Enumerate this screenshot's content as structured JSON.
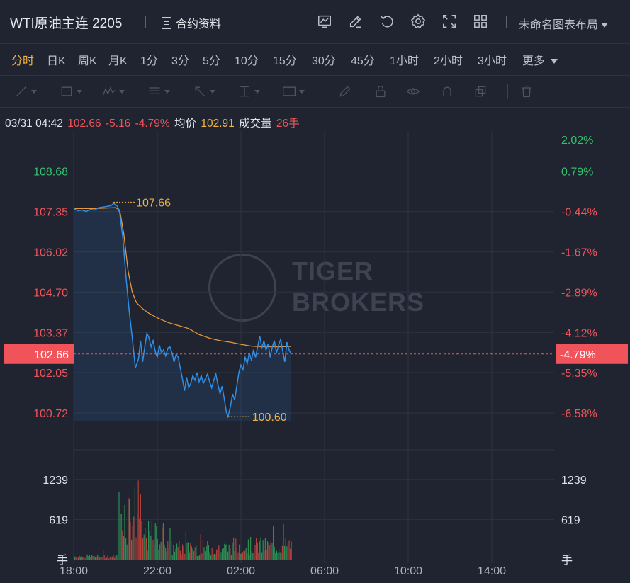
{
  "header": {
    "symbol": "WTI原油主连 2205",
    "contract_label": "合约资料",
    "layout_label": "未命名图表布局",
    "icons": [
      "indicator-icon",
      "draw-icon",
      "undo-icon",
      "settings-icon",
      "fullscreen-icon",
      "grid-layout-icon"
    ]
  },
  "periods": {
    "items": [
      "分时",
      "日K",
      "周K",
      "月K",
      "1分",
      "3分",
      "5分",
      "10分",
      "15分",
      "30分",
      "45分",
      "1小时",
      "2小时",
      "3小时",
      "更多"
    ],
    "active": "分时"
  },
  "drawing_tools": [
    "line-tool-icon",
    "rect-tool-icon",
    "pattern-tool-icon",
    "fib-tool-icon",
    "arrow-tool-icon",
    "measure-tool-icon",
    "text-tool-icon",
    "pen-icon",
    "lock-icon",
    "eye-icon",
    "magnet-icon",
    "layers-icon",
    "trash-icon"
  ],
  "info": {
    "datetime": "03/31 04:42",
    "price": "102.66",
    "change": "-5.16",
    "change_pct": "-4.79%",
    "avg_label": "均价",
    "avg_value": "102.91",
    "volume_label": "成交量",
    "volume_value": "26手"
  },
  "watermark": {
    "line1": "TIGER",
    "line2": "BROKERS"
  },
  "colors": {
    "bg": "#1f2430",
    "up": "#33c26b",
    "down": "#f0545a",
    "accent": "#f3b43a",
    "line": "#2f8fe6",
    "avg": "#e8973a"
  },
  "chart_data": {
    "type": "line",
    "x_ticks": [
      "18:00",
      "22:00",
      "02:00",
      "06:00",
      "10:00",
      "14:00"
    ],
    "price_ticks": [
      {
        "value": 108.68,
        "label": "108.68",
        "pct": "0.79%"
      },
      {
        "value": 107.35,
        "label": "107.35",
        "pct": "-0.44%"
      },
      {
        "value": 106.02,
        "label": "106.02",
        "pct": "-1.67%"
      },
      {
        "value": 104.7,
        "label": "104.70",
        "pct": "-2.89%"
      },
      {
        "value": 103.37,
        "label": "103.37",
        "pct": "-4.12%"
      },
      {
        "value": 102.05,
        "label": "102.05",
        "pct": "-5.35%"
      },
      {
        "value": 100.72,
        "label": "100.72",
        "pct": "-6.58%"
      }
    ],
    "top_pct": "2.02%",
    "current": {
      "price": 102.66,
      "label": "102.66",
      "pct": "-4.79%"
    },
    "high": {
      "value": 107.66,
      "label": "107.66"
    },
    "low": {
      "value": 100.6,
      "label": "100.60"
    },
    "ylim": [
      100.02,
      110.0
    ],
    "volume_ticks": [
      {
        "value": 1239,
        "label": "1239"
      },
      {
        "value": 619,
        "label": "619"
      }
    ],
    "volume_unit": "手",
    "price_series_hours": [
      [
        0.0,
        107.45
      ],
      [
        0.2,
        107.38
      ],
      [
        0.4,
        107.4
      ],
      [
        0.6,
        107.35
      ],
      [
        0.8,
        107.42
      ],
      [
        1.0,
        107.4
      ],
      [
        1.2,
        107.48
      ],
      [
        1.4,
        107.5
      ],
      [
        1.6,
        107.52
      ],
      [
        1.8,
        107.55
      ],
      [
        1.9,
        107.62
      ],
      [
        2.0,
        107.58
      ],
      [
        2.1,
        107.52
      ],
      [
        2.2,
        107.3
      ],
      [
        2.35,
        106.5
      ],
      [
        2.5,
        105.2
      ],
      [
        2.65,
        104.1
      ],
      [
        2.8,
        103.2
      ],
      [
        2.95,
        102.2
      ],
      [
        3.1,
        102.5
      ],
      [
        3.2,
        103.1
      ],
      [
        3.3,
        102.4
      ],
      [
        3.4,
        102.9
      ],
      [
        3.5,
        103.35
      ],
      [
        3.6,
        103.2
      ],
      [
        3.7,
        102.9
      ],
      [
        3.8,
        103.1
      ],
      [
        3.9,
        102.75
      ],
      [
        4.0,
        102.55
      ],
      [
        4.1,
        102.95
      ],
      [
        4.2,
        102.7
      ],
      [
        4.3,
        102.8
      ],
      [
        4.4,
        102.6
      ],
      [
        4.5,
        102.85
      ],
      [
        4.6,
        102.9
      ],
      [
        4.7,
        102.7
      ],
      [
        4.8,
        102.4
      ],
      [
        4.9,
        102.65
      ],
      [
        5.0,
        102.55
      ],
      [
        5.1,
        102.2
      ],
      [
        5.2,
        101.85
      ],
      [
        5.3,
        101.45
      ],
      [
        5.4,
        101.9
      ],
      [
        5.5,
        101.55
      ],
      [
        5.6,
        101.7
      ],
      [
        5.7,
        101.95
      ],
      [
        5.8,
        101.8
      ],
      [
        5.9,
        102.05
      ],
      [
        6.0,
        101.75
      ],
      [
        6.1,
        101.95
      ],
      [
        6.2,
        101.7
      ],
      [
        6.3,
        101.85
      ],
      [
        6.4,
        102.0
      ],
      [
        6.5,
        101.75
      ],
      [
        6.6,
        101.55
      ],
      [
        6.7,
        101.8
      ],
      [
        6.8,
        102.0
      ],
      [
        6.9,
        101.65
      ],
      [
        7.0,
        101.35
      ],
      [
        7.1,
        101.6
      ],
      [
        7.2,
        101.2
      ],
      [
        7.3,
        100.75
      ],
      [
        7.38,
        100.6
      ],
      [
        7.5,
        100.95
      ],
      [
        7.6,
        101.35
      ],
      [
        7.7,
        101.15
      ],
      [
        7.8,
        101.6
      ],
      [
        7.9,
        102.05
      ],
      [
        8.0,
        102.3
      ],
      [
        8.1,
        102.15
      ],
      [
        8.2,
        102.55
      ],
      [
        8.3,
        102.35
      ],
      [
        8.4,
        102.7
      ],
      [
        8.5,
        102.45
      ],
      [
        8.6,
        102.8
      ],
      [
        8.7,
        102.55
      ],
      [
        8.8,
        102.9
      ],
      [
        8.9,
        103.25
      ],
      [
        9.0,
        102.85
      ],
      [
        9.1,
        103.1
      ],
      [
        9.2,
        102.8
      ],
      [
        9.3,
        103.0
      ],
      [
        9.4,
        102.55
      ],
      [
        9.5,
        102.9
      ],
      [
        9.6,
        103.1
      ],
      [
        9.7,
        102.7
      ],
      [
        9.8,
        102.95
      ],
      [
        9.9,
        103.15
      ],
      [
        10.0,
        102.75
      ],
      [
        10.1,
        102.4
      ],
      [
        10.2,
        103.05
      ],
      [
        10.3,
        102.8
      ],
      [
        10.4,
        102.66
      ]
    ],
    "avg_series_hours": [
      [
        0.0,
        107.45
      ],
      [
        1.0,
        107.45
      ],
      [
        2.0,
        107.48
      ],
      [
        2.2,
        107.4
      ],
      [
        2.4,
        106.6
      ],
      [
        2.6,
        105.4
      ],
      [
        2.8,
        104.7
      ],
      [
        3.0,
        104.35
      ],
      [
        3.3,
        104.15
      ],
      [
        3.6,
        104.0
      ],
      [
        4.0,
        103.85
      ],
      [
        4.5,
        103.7
      ],
      [
        5.0,
        103.6
      ],
      [
        5.5,
        103.5
      ],
      [
        6.0,
        103.3
      ],
      [
        6.5,
        103.18
      ],
      [
        7.0,
        103.1
      ],
      [
        7.5,
        103.05
      ],
      [
        8.0,
        102.98
      ],
      [
        8.5,
        102.92
      ],
      [
        9.0,
        102.9
      ],
      [
        9.5,
        102.9
      ],
      [
        10.0,
        102.9
      ],
      [
        10.4,
        102.91
      ]
    ]
  }
}
